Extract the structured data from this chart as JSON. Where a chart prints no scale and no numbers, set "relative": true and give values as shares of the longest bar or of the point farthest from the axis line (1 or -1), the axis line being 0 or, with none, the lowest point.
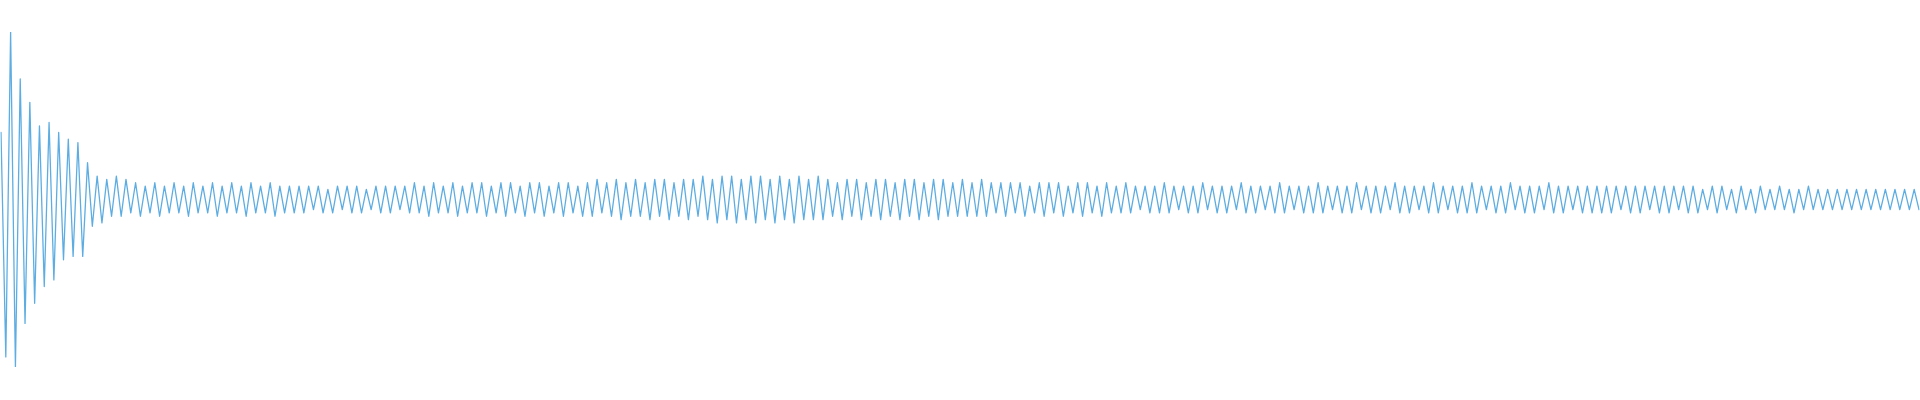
{
  "chart_data": {
    "type": "line",
    "relative": true,
    "marker": "none",
    "color": "#5dade2",
    "categories": [
      null,
      null,
      null,
      null,
      null,
      null,
      null,
      null,
      null,
      null,
      null,
      null,
      null,
      null,
      null,
      null,
      null,
      null,
      null,
      null,
      null,
      null,
      null,
      null,
      null,
      null,
      null,
      null,
      null,
      null,
      null,
      null,
      null,
      null,
      null,
      null,
      null,
      null,
      null,
      null,
      null,
      null,
      null,
      null,
      null,
      null,
      null,
      null,
      null,
      null,
      null,
      null,
      null,
      null,
      null,
      null,
      null,
      null,
      null,
      null,
      null,
      null,
      null,
      null,
      null,
      null,
      null,
      null,
      null,
      null,
      null,
      null,
      null,
      null,
      null,
      null,
      null,
      null,
      null,
      null,
      null,
      null,
      null,
      null,
      null,
      null,
      null,
      null,
      null,
      null,
      null,
      null,
      null,
      null,
      null,
      null,
      null,
      null,
      null,
      null,
      null,
      null,
      null,
      null,
      null,
      null,
      null,
      null,
      null,
      null,
      null,
      null,
      null,
      null,
      null,
      null,
      null,
      null,
      null,
      null,
      null,
      null,
      null,
      null,
      null,
      null,
      null,
      null,
      null,
      null,
      null,
      null,
      null,
      null,
      null,
      null,
      null,
      null,
      null,
      null,
      null,
      null,
      null,
      null,
      null,
      null,
      null,
      null,
      null,
      null,
      null,
      null,
      null,
      null,
      null,
      null,
      null,
      null,
      null,
      null,
      null,
      null,
      null,
      null,
      null,
      null,
      null,
      null,
      null,
      null,
      null,
      null,
      null,
      null,
      null,
      null,
      null,
      null,
      null,
      null,
      null,
      null,
      null,
      null,
      null,
      null,
      null,
      null,
      null,
      null,
      null,
      null,
      null,
      null,
      null,
      null,
      null,
      null,
      null,
      null,
      null,
      null,
      null,
      null,
      null,
      null,
      null,
      null,
      null,
      null,
      null,
      null,
      null,
      null,
      null,
      null,
      null,
      null,
      null,
      null,
      null,
      null,
      null,
      null,
      null,
      null,
      null,
      null,
      null,
      null,
      null,
      null,
      null,
      null,
      null,
      null,
      null,
      null,
      null,
      null,
      null,
      null,
      null,
      null,
      null,
      null,
      null,
      null,
      null,
      null,
      null,
      null,
      null,
      null,
      null,
      null,
      null,
      null,
      null,
      null,
      null,
      null,
      null,
      null,
      null,
      null,
      null,
      null,
      null,
      null,
      null,
      null,
      null,
      null,
      null,
      null,
      null,
      null,
      null,
      null,
      null,
      null,
      null,
      null,
      null,
      null,
      null,
      null,
      null,
      null,
      null,
      null,
      null,
      null,
      null,
      null,
      null,
      null,
      null,
      null,
      null,
      null,
      null,
      null,
      null,
      null,
      null,
      null,
      null,
      null,
      null,
      null,
      null,
      null,
      null,
      null,
      null,
      null,
      null,
      null,
      null,
      null,
      null,
      null,
      null,
      null,
      null,
      null,
      null,
      null,
      null,
      null,
      null,
      null,
      null,
      null,
      null,
      null,
      null,
      null,
      null,
      null,
      null,
      null,
      null,
      null,
      null,
      null,
      null,
      null,
      null,
      null,
      null,
      null,
      null,
      null,
      null,
      null,
      null,
      null,
      null,
      null,
      null,
      null,
      null,
      null,
      null,
      null,
      null,
      null,
      null,
      null,
      null,
      null,
      null,
      null,
      null,
      null,
      null,
      null,
      null,
      null,
      null,
      null,
      null,
      null,
      null,
      null,
      null,
      null,
      null,
      null,
      null,
      null,
      null,
      null,
      null,
      null,
      null,
      null
    ],
    "values": [
      0.7,
      0.03,
      1.0,
      0.0,
      0.86,
      0.13,
      0.79,
      0.19,
      0.72,
      0.24,
      0.73,
      0.26,
      0.7,
      0.32,
      0.68,
      0.33,
      0.67,
      0.33,
      0.61,
      0.42,
      0.57,
      0.43,
      0.56,
      0.45,
      0.57,
      0.45,
      0.56,
      0.46,
      0.55,
      0.45,
      0.54,
      0.46,
      0.55,
      0.45,
      0.54,
      0.46,
      0.55,
      0.46,
      0.54,
      0.45,
      0.55,
      0.46,
      0.54,
      0.46,
      0.55,
      0.45,
      0.54,
      0.46,
      0.55,
      0.46,
      0.54,
      0.45,
      0.55,
      0.46,
      0.54,
      0.46,
      0.55,
      0.45,
      0.54,
      0.46,
      0.54,
      0.46,
      0.54,
      0.46,
      0.54,
      0.47,
      0.54,
      0.46,
      0.53,
      0.46,
      0.54,
      0.47,
      0.54,
      0.46,
      0.54,
      0.46,
      0.53,
      0.47,
      0.54,
      0.46,
      0.54,
      0.46,
      0.54,
      0.47,
      0.54,
      0.46,
      0.55,
      0.46,
      0.54,
      0.45,
      0.55,
      0.46,
      0.54,
      0.46,
      0.55,
      0.45,
      0.54,
      0.46,
      0.55,
      0.46,
      0.55,
      0.45,
      0.54,
      0.46,
      0.55,
      0.45,
      0.55,
      0.46,
      0.54,
      0.45,
      0.55,
      0.46,
      0.55,
      0.45,
      0.54,
      0.46,
      0.55,
      0.45,
      0.55,
      0.46,
      0.54,
      0.45,
      0.55,
      0.45,
      0.56,
      0.46,
      0.55,
      0.45,
      0.56,
      0.44,
      0.55,
      0.45,
      0.56,
      0.45,
      0.55,
      0.44,
      0.56,
      0.45,
      0.56,
      0.44,
      0.55,
      0.45,
      0.56,
      0.44,
      0.56,
      0.45,
      0.57,
      0.44,
      0.56,
      0.43,
      0.57,
      0.44,
      0.57,
      0.43,
      0.56,
      0.44,
      0.57,
      0.43,
      0.57,
      0.44,
      0.56,
      0.43,
      0.57,
      0.44,
      0.56,
      0.43,
      0.57,
      0.44,
      0.56,
      0.44,
      0.57,
      0.44,
      0.56,
      0.45,
      0.55,
      0.44,
      0.56,
      0.45,
      0.56,
      0.44,
      0.55,
      0.45,
      0.56,
      0.44,
      0.56,
      0.45,
      0.55,
      0.44,
      0.56,
      0.45,
      0.56,
      0.44,
      0.55,
      0.45,
      0.56,
      0.44,
      0.56,
      0.45,
      0.55,
      0.45,
      0.56,
      0.45,
      0.55,
      0.45,
      0.56,
      0.45,
      0.55,
      0.46,
      0.55,
      0.45,
      0.55,
      0.46,
      0.55,
      0.45,
      0.54,
      0.46,
      0.55,
      0.45,
      0.55,
      0.46,
      0.55,
      0.45,
      0.54,
      0.46,
      0.55,
      0.45,
      0.55,
      0.46,
      0.54,
      0.45,
      0.55,
      0.46,
      0.54,
      0.46,
      0.55,
      0.46,
      0.54,
      0.47,
      0.54,
      0.46,
      0.54,
      0.46,
      0.55,
      0.46,
      0.54,
      0.47,
      0.54,
      0.46,
      0.54,
      0.46,
      0.55,
      0.47,
      0.54,
      0.46,
      0.54,
      0.46,
      0.54,
      0.47,
      0.55,
      0.46,
      0.54,
      0.46,
      0.54,
      0.47,
      0.54,
      0.46,
      0.55,
      0.46,
      0.54,
      0.47,
      0.54,
      0.46,
      0.54,
      0.46,
      0.55,
      0.46,
      0.54,
      0.47,
      0.54,
      0.46,
      0.54,
      0.46,
      0.55,
      0.47,
      0.54,
      0.46,
      0.54,
      0.46,
      0.54,
      0.47,
      0.55,
      0.46,
      0.54,
      0.46,
      0.54,
      0.47,
      0.54,
      0.46,
      0.55,
      0.46,
      0.54,
      0.47,
      0.54,
      0.46,
      0.54,
      0.46,
      0.55,
      0.46,
      0.54,
      0.47,
      0.54,
      0.46,
      0.54,
      0.46,
      0.55,
      0.47,
      0.54,
      0.46,
      0.54,
      0.46,
      0.54,
      0.47,
      0.55,
      0.46,
      0.54,
      0.46,
      0.54,
      0.47,
      0.54,
      0.46,
      0.54,
      0.46,
      0.54,
      0.46,
      0.54,
      0.46,
      0.54,
      0.47,
      0.54,
      0.46,
      0.54,
      0.46,
      0.54,
      0.47,
      0.54,
      0.46,
      0.54,
      0.46,
      0.54,
      0.47,
      0.54,
      0.46,
      0.54,
      0.46,
      0.53,
      0.47,
      0.54,
      0.46,
      0.54,
      0.47,
      0.53,
      0.46,
      0.54,
      0.47,
      0.53,
      0.46,
      0.54,
      0.47,
      0.53,
      0.47,
      0.54,
      0.47,
      0.53,
      0.46,
      0.53,
      0.47,
      0.54,
      0.47,
      0.53,
      0.47,
      0.53,
      0.47,
      0.53,
      0.47,
      0.53,
      0.47,
      0.53,
      0.47,
      0.53,
      0.47,
      0.53,
      0.47,
      0.53,
      0.47,
      0.53,
      0.47,
      0.53,
      0.47,
      0.53,
      0.47
    ]
  }
}
